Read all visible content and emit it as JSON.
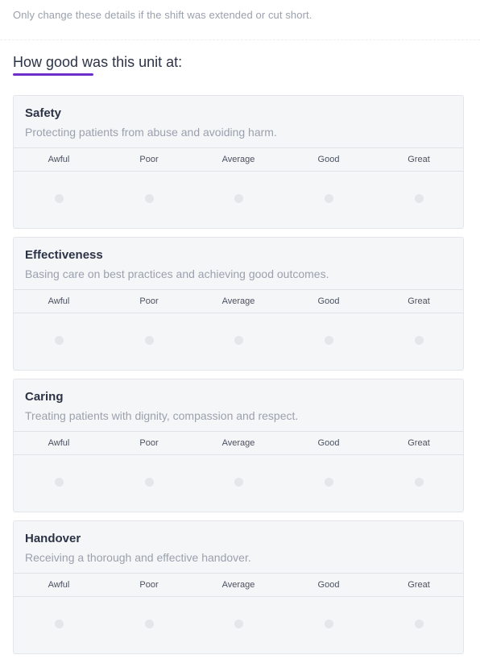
{
  "hint_text": "Only change these details if the shift was extended or cut short.",
  "section": {
    "heading": "How good was this unit at:",
    "accent_color": "#6c2fc9"
  },
  "scale_labels": [
    "Awful",
    "Poor",
    "Average",
    "Good",
    "Great"
  ],
  "categories": [
    {
      "title": "Safety",
      "description": "Protecting patients from abuse and avoiding harm.",
      "selected": null
    },
    {
      "title": "Effectiveness",
      "description": "Basing care on best practices and achieving good outcomes.",
      "selected": null
    },
    {
      "title": "Caring",
      "description": "Treating patients with dignity, compassion and respect.",
      "selected": null
    },
    {
      "title": "Handover",
      "description": "Receiving a thorough and effective handover.",
      "selected": null
    }
  ]
}
